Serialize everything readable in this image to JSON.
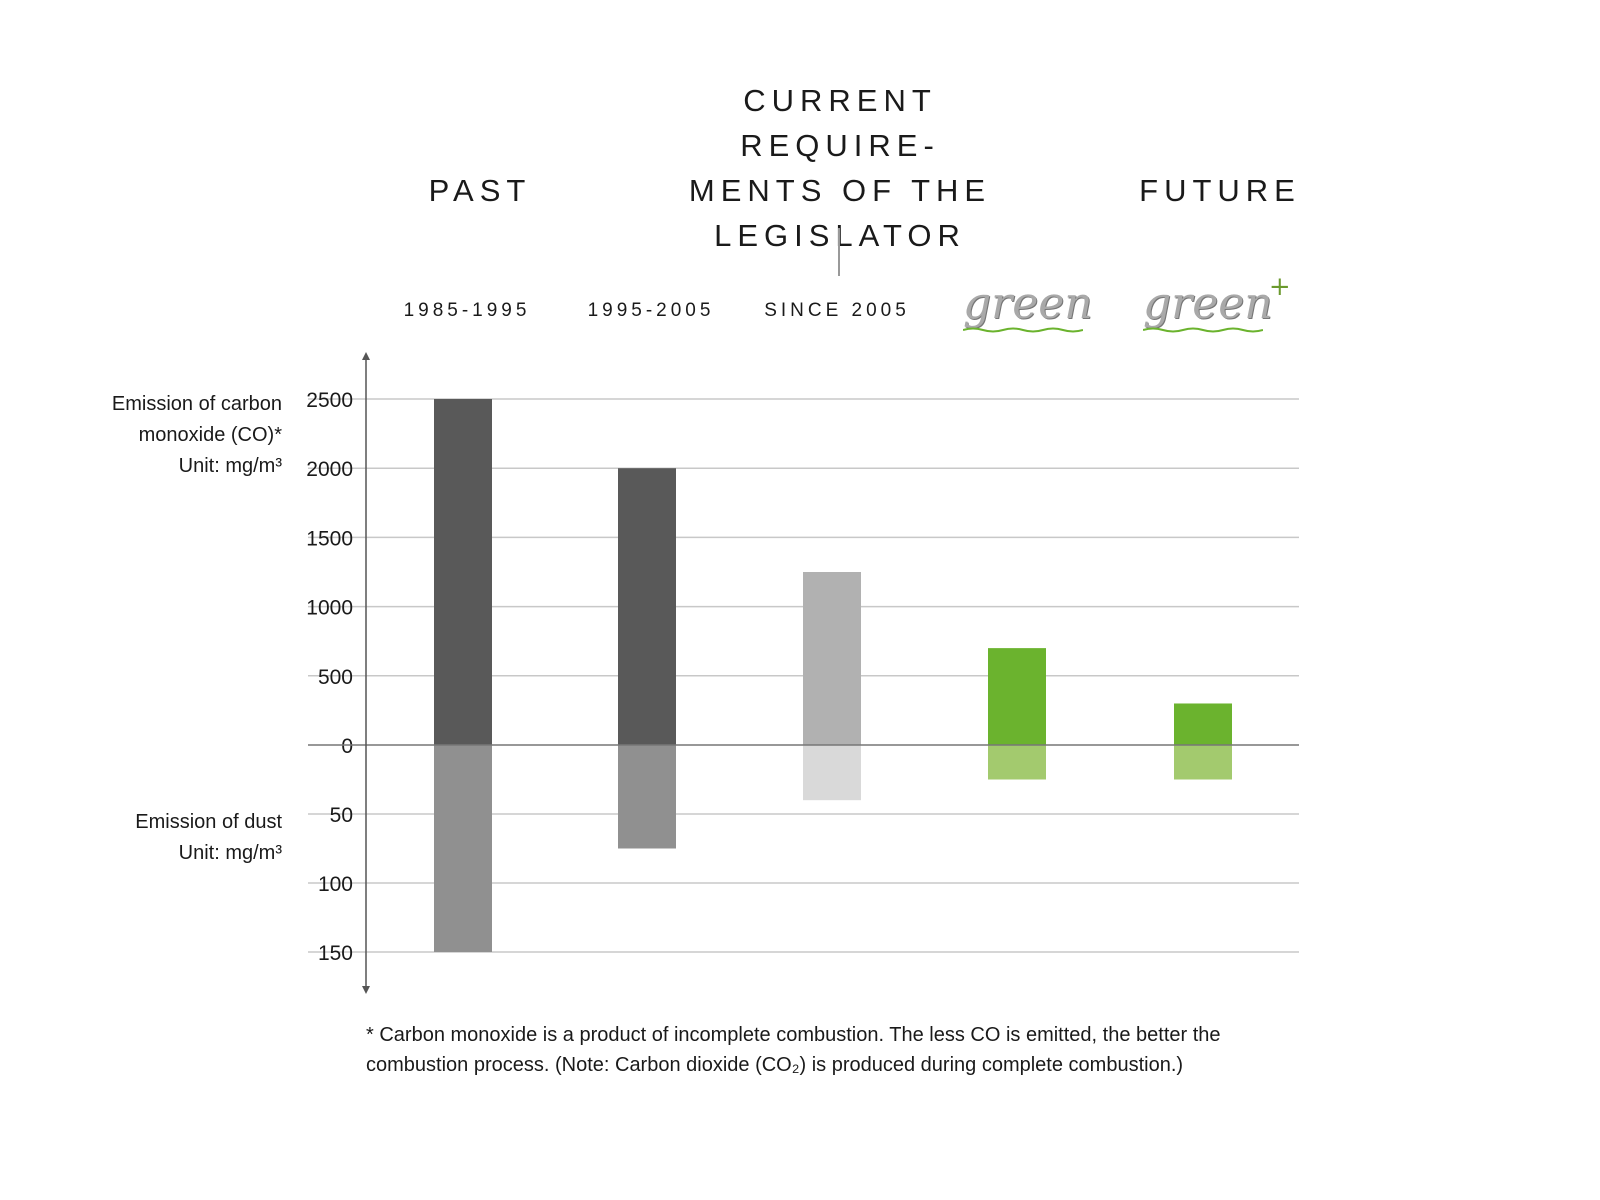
{
  "headers": {
    "past": "PAST",
    "current": [
      "CURRENT REQUIRE-",
      "MENTS OF THE",
      "LEGISLATOR"
    ],
    "future": "FUTURE"
  },
  "chart_data": {
    "type": "bar",
    "title": "",
    "categories": [
      "1985-1995",
      "1995-2005",
      "SINCE 2005",
      "green",
      "green+"
    ],
    "series": [
      {
        "name": "Emission of carbon monoxide (CO)* Unit: mg/m³",
        "values": [
          2500,
          2000,
          1250,
          700,
          300
        ],
        "colors": [
          "#595959",
          "#595959",
          "#b1b1b1",
          "#6bb32e",
          "#6bb32e"
        ]
      },
      {
        "name": "Emission of dust Unit: mg/m³",
        "values": [
          150,
          75,
          40,
          25,
          25
        ],
        "colors": [
          "#909090",
          "#909090",
          "#d9d9d9",
          "#a3ca6e",
          "#a3ca6e"
        ]
      }
    ],
    "co_axis": {
      "ylim": [
        0,
        2500
      ],
      "ticks": [
        "2500",
        "2000",
        "1500",
        "1000",
        "500",
        "0"
      ],
      "tick_values": [
        2500,
        2000,
        1500,
        1000,
        500,
        0
      ]
    },
    "dust_axis": {
      "ylim": [
        0,
        150
      ],
      "ticks": [
        "50",
        "100",
        "150"
      ],
      "tick_values": [
        50,
        100,
        150
      ]
    },
    "ylabel_co": [
      "Emission of carbon",
      "monoxide (CO)*",
      "Unit: mg/m³"
    ],
    "ylabel_dust": [
      "Emission of dust",
      "Unit: mg/m³"
    ],
    "grid": true
  },
  "footnote": "* Carbon monoxide is a product of incomplete combustion. The less CO is emitted, the better the combustion process. (Note: Carbon dioxide (CO₂) is produced during complete combustion.)"
}
